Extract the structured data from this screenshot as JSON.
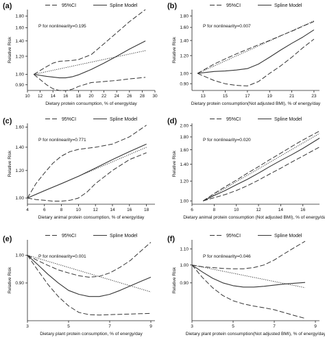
{
  "chart_data": [
    {
      "panel": "(a)",
      "type": "line",
      "legend": [
        "95%CI",
        "Spline Model"
      ],
      "annotation": "P for nonlinearity=0.195",
      "xlabel": "Dietary protein consumption, % of energy/day",
      "ylabel": "Relative Risk",
      "xlim": [
        10,
        30
      ],
      "ylim": [
        0.85,
        1.92
      ],
      "ylog": true,
      "xticks": [
        10,
        12,
        14,
        16,
        18,
        20,
        22,
        24,
        26,
        28,
        30
      ],
      "yticks": [
        0.9,
        1.0,
        1.2,
        1.4,
        1.6,
        1.8
      ],
      "ytick_labels": [
        "0.90",
        "1.00",
        "1.20",
        "1.40",
        "1.60",
        "1.80"
      ],
      "series": [
        {
          "role": "spline",
          "x": [
            11,
            13,
            15,
            16,
            17,
            18,
            20,
            22,
            24,
            26,
            28.5
          ],
          "y": [
            1.0,
            0.98,
            0.965,
            0.965,
            0.975,
            0.995,
            1.05,
            1.12,
            1.2,
            1.29,
            1.4
          ]
        },
        {
          "role": "linear",
          "x": [
            11,
            28.5
          ],
          "y": [
            1.0,
            1.27
          ]
        },
        {
          "role": "ci",
          "x": [
            11,
            13,
            14,
            15,
            16,
            17,
            18,
            20,
            22,
            24,
            26,
            28.5
          ],
          "y": [
            1.0,
            1.08,
            1.12,
            1.14,
            1.145,
            1.15,
            1.16,
            1.22,
            1.36,
            1.52,
            1.7,
            1.92
          ]
        },
        {
          "role": "ci",
          "x": [
            11,
            13,
            14,
            15,
            16,
            17,
            18,
            20,
            22,
            24,
            26,
            28.5
          ],
          "y": [
            1.0,
            0.9,
            0.865,
            0.85,
            0.848,
            0.86,
            0.885,
            0.92,
            0.93,
            0.94,
            0.955,
            0.97
          ]
        }
      ]
    },
    {
      "panel": "(b)",
      "type": "line",
      "legend": [
        "95%CI",
        "Spline Model"
      ],
      "annotation": "P for nonlinearity=0.007",
      "xlabel": "Dietary protein consumption(Not adjusted BMI), % of energy/day",
      "ylabel": "Relative Risk",
      "xlim": [
        12,
        23.5
      ],
      "ylim": [
        0.84,
        1.92
      ],
      "ylog": true,
      "xticks": [
        13,
        15,
        17,
        19,
        21,
        23
      ],
      "yticks": [
        0.9,
        1.0,
        1.2,
        1.4,
        1.6,
        1.8
      ],
      "ytick_labels": [
        "0.90",
        "1.00",
        "1.20",
        "1.40",
        "1.60",
        "1.80"
      ],
      "series": [
        {
          "role": "spline",
          "x": [
            12.5,
            14,
            15,
            16,
            17,
            18,
            19,
            20,
            21,
            22,
            23
          ],
          "y": [
            1.0,
            1.02,
            1.025,
            1.035,
            1.05,
            1.1,
            1.18,
            1.27,
            1.36,
            1.45,
            1.56
          ]
        },
        {
          "role": "linear",
          "x": [
            12.5,
            23
          ],
          "y": [
            1.0,
            1.71
          ]
        },
        {
          "role": "ci",
          "x": [
            12.5,
            14,
            15,
            16,
            17,
            18,
            19,
            20,
            21,
            22,
            23
          ],
          "y": [
            1.0,
            1.1,
            1.16,
            1.22,
            1.28,
            1.34,
            1.4,
            1.47,
            1.54,
            1.62,
            1.7
          ]
        },
        {
          "role": "ci",
          "x": [
            12.5,
            14,
            15,
            16,
            17,
            18,
            19,
            20,
            21,
            22,
            23
          ],
          "y": [
            1.0,
            0.93,
            0.9,
            0.885,
            0.88,
            0.92,
            1.0,
            1.08,
            1.18,
            1.3,
            1.42
          ]
        }
      ]
    },
    {
      "panel": "(c)",
      "type": "line",
      "legend": [
        "95%CI",
        "Spline Model"
      ],
      "annotation": "P for nonlinearity=0.771",
      "xlabel": "Dietary animal protein consumption, % of energy/day",
      "ylabel": "Relative Risk",
      "xlim": [
        4,
        19
      ],
      "ylim": [
        0.96,
        1.64
      ],
      "ylog": true,
      "xticks": [
        4,
        6,
        8,
        10,
        12,
        14,
        16,
        18
      ],
      "yticks": [
        1.0,
        1.2,
        1.4,
        1.6
      ],
      "ytick_labels": [
        "1.00",
        "1.20",
        "1.40",
        "1.60"
      ],
      "series": [
        {
          "role": "spline",
          "x": [
            4,
            6,
            8,
            10,
            12,
            14,
            16,
            18
          ],
          "y": [
            1.0,
            1.05,
            1.1,
            1.155,
            1.22,
            1.29,
            1.36,
            1.43
          ]
        },
        {
          "role": "linear",
          "x": [
            4,
            18
          ],
          "y": [
            1.0,
            1.4
          ]
        },
        {
          "role": "ci",
          "x": [
            4,
            5,
            6,
            7,
            8,
            9,
            10,
            12,
            14,
            16,
            18
          ],
          "y": [
            1.0,
            1.1,
            1.18,
            1.26,
            1.32,
            1.36,
            1.38,
            1.4,
            1.43,
            1.5,
            1.62
          ]
        },
        {
          "role": "ci",
          "x": [
            4,
            5,
            6,
            7,
            8,
            9,
            10,
            11,
            12,
            14,
            16,
            18
          ],
          "y": [
            1.0,
            0.99,
            0.985,
            0.98,
            0.98,
            0.985,
            1.0,
            1.04,
            1.1,
            1.2,
            1.29,
            1.35
          ]
        }
      ]
    },
    {
      "panel": "(d)",
      "type": "line",
      "legend": [
        "95%CI",
        "Spline Model"
      ],
      "annotation": "P for nonlinearity=0.020",
      "xlabel": "Dietary animal protein consumption (Not adjusted BMI), % of energy/day",
      "ylabel": "Relative Risk",
      "xlim": [
        6,
        17.5
      ],
      "ylim": [
        0.97,
        2.04
      ],
      "ylog": true,
      "xticks": [
        6,
        8,
        10,
        12,
        14,
        16
      ],
      "yticks": [
        1.0,
        1.2,
        1.4,
        1.6,
        1.8,
        2.0
      ],
      "ytick_labels": [
        "1.00",
        "1.20",
        "1.40",
        "1.60",
        "1.80",
        "2.00"
      ],
      "series": [
        {
          "role": "spline",
          "x": [
            7,
            8,
            9,
            10,
            11,
            12,
            13,
            14,
            15,
            16,
            17.5
          ],
          "y": [
            1.0,
            1.05,
            1.1,
            1.16,
            1.22,
            1.29,
            1.37,
            1.45,
            1.53,
            1.62,
            1.78
          ]
        },
        {
          "role": "linear",
          "x": [
            7,
            17.5
          ],
          "y": [
            1.0,
            1.86
          ]
        },
        {
          "role": "ci",
          "x": [
            7,
            8,
            9,
            10,
            11,
            12,
            13,
            14,
            15,
            16,
            17.5
          ],
          "y": [
            1.0,
            1.07,
            1.14,
            1.21,
            1.29,
            1.37,
            1.46,
            1.55,
            1.65,
            1.75,
            1.9
          ]
        },
        {
          "role": "ci",
          "x": [
            7,
            8,
            9,
            10,
            11,
            12,
            13,
            14,
            15,
            16,
            17.5
          ],
          "y": [
            1.0,
            1.03,
            1.06,
            1.1,
            1.15,
            1.21,
            1.28,
            1.35,
            1.43,
            1.51,
            1.64
          ]
        }
      ]
    },
    {
      "panel": "(e)",
      "type": "line",
      "legend": [
        "95%CI",
        "Spline Model"
      ],
      "annotation": "P for nonlinearity=0.001",
      "xlabel": "Dietary plant protein consumption, % of energy/day",
      "ylabel": "Relative Risk",
      "xlim": [
        3,
        9.2
      ],
      "ylim": [
        0.78,
        1.06
      ],
      "ylog": true,
      "xticks": [
        3,
        5,
        7,
        9
      ],
      "yticks": [
        0.9,
        1.0
      ],
      "ytick_labels": [
        "0.90",
        "1.00"
      ],
      "series": [
        {
          "role": "spline",
          "x": [
            3,
            3.5,
            4,
            4.5,
            5,
            5.5,
            6,
            6.5,
            7,
            7.5,
            8,
            8.5,
            9
          ],
          "y": [
            1.0,
            0.965,
            0.93,
            0.9,
            0.875,
            0.862,
            0.855,
            0.855,
            0.862,
            0.875,
            0.89,
            0.905,
            0.92
          ]
        },
        {
          "role": "linear",
          "x": [
            3,
            9
          ],
          "y": [
            1.0,
            0.87
          ]
        },
        {
          "role": "ci",
          "x": [
            3,
            3.5,
            4,
            4.5,
            5,
            5.5,
            6,
            6.5,
            7,
            7.5,
            8,
            8.5,
            9
          ],
          "y": [
            1.0,
            0.98,
            0.962,
            0.946,
            0.935,
            0.925,
            0.92,
            0.923,
            0.935,
            0.955,
            0.98,
            1.015,
            1.05
          ]
        },
        {
          "role": "ci",
          "x": [
            3,
            3.5,
            4,
            4.5,
            5,
            5.5,
            6,
            6.5,
            7,
            7.5,
            8,
            8.5,
            9
          ],
          "y": [
            1.0,
            0.945,
            0.895,
            0.855,
            0.825,
            0.805,
            0.798,
            0.797,
            0.798,
            0.799,
            0.8,
            0.801,
            0.802
          ]
        }
      ]
    },
    {
      "panel": "(f)",
      "type": "line",
      "legend": [
        "95%CI",
        "Spline Model"
      ],
      "annotation": "P for nonlinearity=0.046",
      "xlabel": "Dietary plant protein consumption(Not adjusted BMI), % of energy/day",
      "ylabel": "Relative Risk",
      "xlim": [
        3,
        9.2
      ],
      "ylim": [
        0.72,
        1.16
      ],
      "ylog": true,
      "xticks": [
        3,
        5,
        7,
        9
      ],
      "yticks": [
        0.9,
        1.0,
        1.1
      ],
      "ytick_labels": [
        "0.90",
        "1.00",
        "1.10"
      ],
      "series": [
        {
          "role": "spline",
          "x": [
            3,
            3.5,
            4,
            4.5,
            5,
            5.5,
            6,
            6.5,
            7,
            7.5,
            8,
            8.5
          ],
          "y": [
            1.0,
            0.96,
            0.925,
            0.9,
            0.885,
            0.878,
            0.878,
            0.882,
            0.888,
            0.894,
            0.898,
            0.902
          ]
        },
        {
          "role": "linear",
          "x": [
            3,
            8.5
          ],
          "y": [
            1.0,
            0.875
          ]
        },
        {
          "role": "ci",
          "x": [
            3,
            3.5,
            4,
            4.5,
            5,
            5.5,
            6,
            6.5,
            7,
            7.5,
            8,
            8.5
          ],
          "y": [
            1.0,
            0.99,
            0.985,
            0.98,
            0.978,
            0.978,
            0.985,
            1.0,
            1.03,
            1.07,
            1.11,
            1.15
          ]
        },
        {
          "role": "ci",
          "x": [
            3,
            3.5,
            4,
            4.5,
            5,
            5.5,
            6,
            6.5,
            7,
            7.5,
            8,
            8.5
          ],
          "y": [
            1.0,
            0.93,
            0.875,
            0.835,
            0.81,
            0.795,
            0.785,
            0.777,
            0.768,
            0.755,
            0.742,
            0.73
          ]
        }
      ]
    }
  ]
}
